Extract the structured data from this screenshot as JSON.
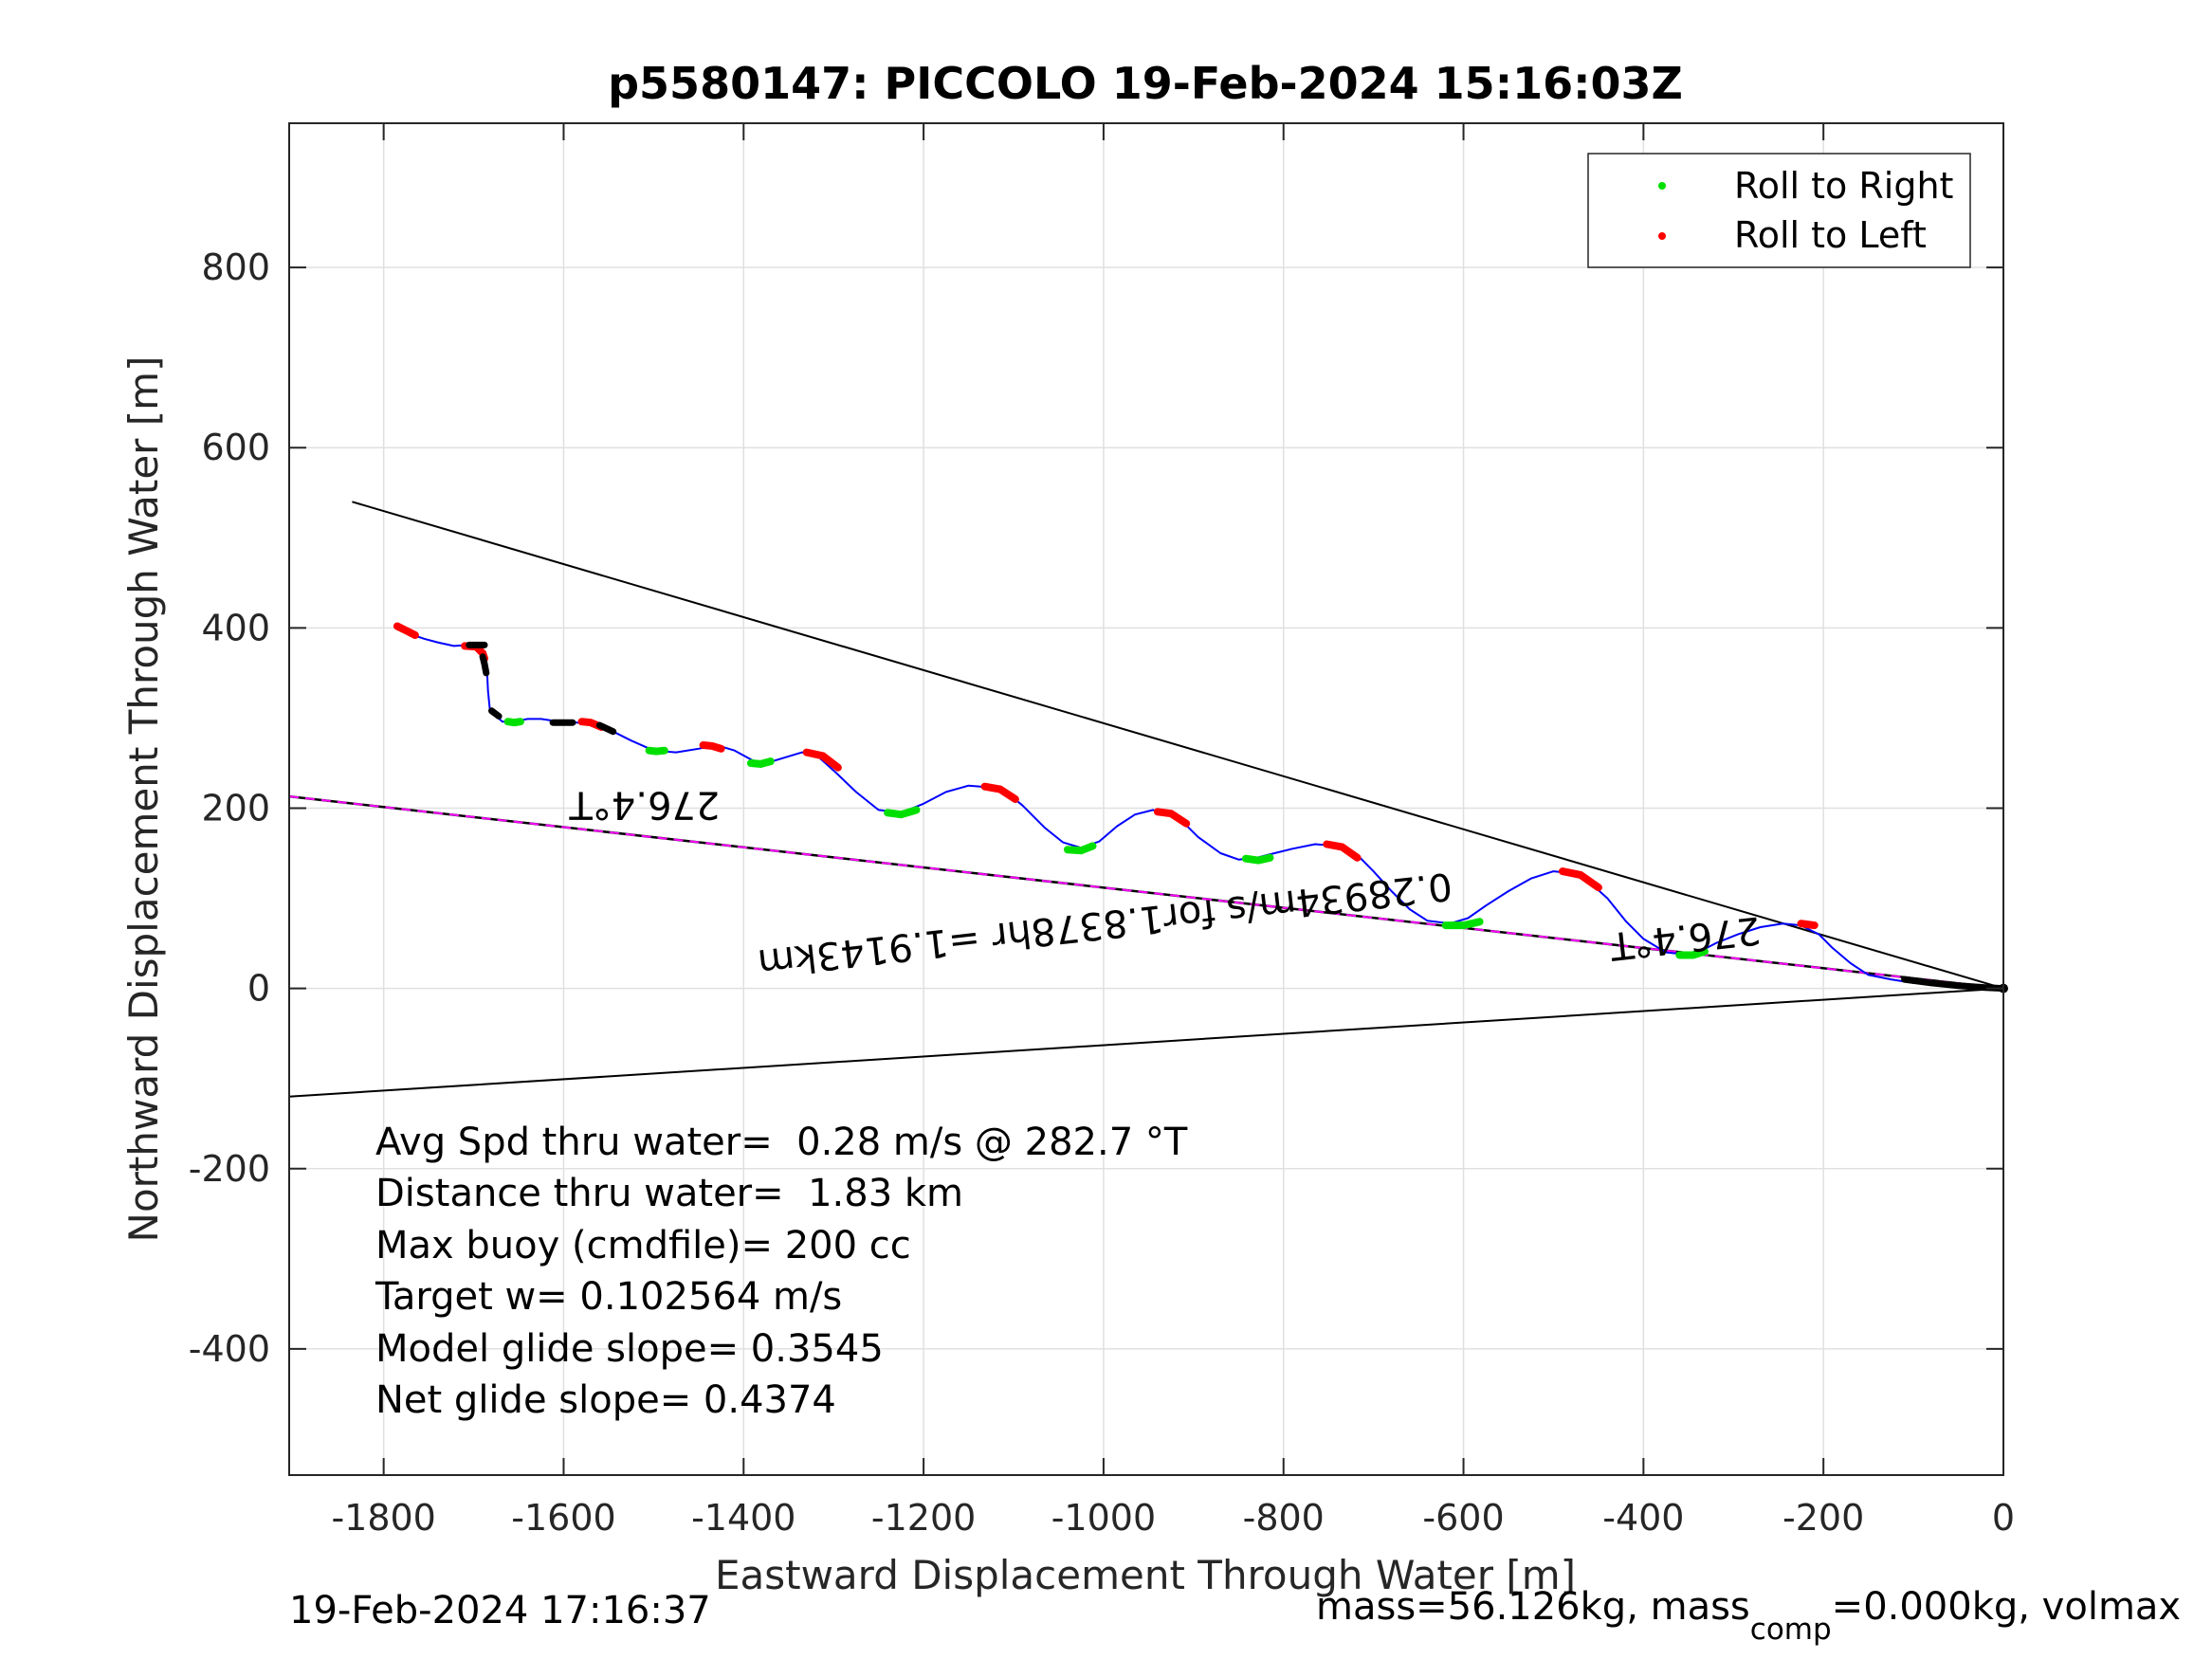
{
  "chart_data": {
    "type": "line",
    "title": "p5580147: PICCOLO 19-Feb-2024 15:16:03Z",
    "xlabel": "Eastward Displacement Through Water [m]",
    "ylabel": "Northward Displacement Through Water [m]",
    "xlim": [
      -1905,
      0
    ],
    "ylim": [
      -540,
      960
    ],
    "xticks": [
      -1800,
      -1600,
      -1400,
      -1200,
      -1000,
      -800,
      -600,
      -400,
      -200,
      0
    ],
    "yticks": [
      -400,
      -200,
      0,
      200,
      400,
      600,
      800
    ],
    "grid": true,
    "legend_position": "top-right",
    "legend": [
      {
        "label": "Roll to Right",
        "color": "#00e000"
      },
      {
        "label": "Roll to Left",
        "color": "#ff0000"
      }
    ],
    "colors": {
      "track": "#0000ff",
      "heading_line": "#ff00ff",
      "cone": "#000000",
      "roll_right": "#00e000",
      "roll_left": "#ff0000",
      "grid": "#e0e0e0"
    },
    "track": {
      "x": [
        -1783,
        -1770,
        -1755,
        -1740,
        -1722,
        -1707,
        -1695,
        -1688,
        -1685,
        -1684,
        -1682,
        -1676,
        -1668,
        -1655,
        -1640,
        -1625,
        -1605,
        -1585,
        -1565,
        -1545,
        -1525,
        -1500,
        -1475,
        -1450,
        -1430,
        -1410,
        -1390,
        -1375,
        -1355,
        -1335,
        -1318,
        -1298,
        -1275,
        -1250,
        -1225,
        -1200,
        -1175,
        -1150,
        -1125,
        -1108,
        -1090,
        -1065,
        -1045,
        -1025,
        -1005,
        -985,
        -965,
        -945,
        -925,
        -910,
        -895,
        -870,
        -850,
        -830,
        -810,
        -790,
        -765,
        -740,
        -720,
        -700,
        -680,
        -660,
        -640,
        -615,
        -595,
        -575,
        -550,
        -525,
        -500,
        -480,
        -460,
        -440,
        -420,
        -400,
        -375,
        -345,
        -320,
        -295,
        -270,
        -245,
        -225,
        -205,
        -190,
        -170,
        -150,
        -125,
        -100,
        -80,
        -60,
        -40,
        -20,
        0
      ],
      "y": [
        402,
        393,
        388,
        384,
        380,
        381,
        376,
        368,
        350,
        330,
        310,
        303,
        296,
        296,
        299,
        299,
        296,
        295,
        292,
        285,
        275,
        264,
        262,
        266,
        270,
        264,
        253,
        250,
        256,
        262,
        258,
        240,
        218,
        198,
        195,
        205,
        218,
        225,
        223,
        218,
        203,
        178,
        162,
        156,
        163,
        180,
        193,
        198,
        192,
        183,
        168,
        150,
        143,
        145,
        150,
        155,
        160,
        158,
        150,
        130,
        108,
        88,
        75,
        72,
        78,
        92,
        108,
        122,
        130,
        128,
        118,
        100,
        75,
        55,
        40,
        37,
        50,
        60,
        68,
        72,
        70,
        60,
        45,
        28,
        15,
        10,
        6,
        5,
        4,
        3,
        2,
        0
      ]
    },
    "roll_right_segments": [
      {
        "x": [
          -1662,
          -1655,
          -1648
        ],
        "y": [
          296,
          295,
          296
        ]
      },
      {
        "x": [
          -1505,
          -1497,
          -1488
        ],
        "y": [
          264,
          263,
          264
        ]
      },
      {
        "x": [
          -1392,
          -1381,
          -1370
        ],
        "y": [
          250,
          249,
          252
        ]
      },
      {
        "x": [
          -1240,
          -1225,
          -1208
        ],
        "y": [
          195,
          193,
          198
        ]
      },
      {
        "x": [
          -1040,
          -1025,
          -1012
        ],
        "y": [
          154,
          153,
          158
        ]
      },
      {
        "x": [
          -842,
          -828,
          -815
        ],
        "y": [
          144,
          142,
          145
        ]
      },
      {
        "x": [
          -620,
          -600,
          -582
        ],
        "y": [
          70,
          70,
          74
        ]
      },
      {
        "x": [
          -360,
          -345,
          -332
        ],
        "y": [
          37,
          37,
          41
        ]
      }
    ],
    "roll_left_segments": [
      {
        "x": [
          -1785,
          -1775,
          -1765
        ],
        "y": [
          402,
          397,
          392
        ]
      },
      {
        "x": [
          -1710,
          -1697,
          -1690,
          -1688
        ],
        "y": [
          380,
          379,
          372,
          366
        ]
      },
      {
        "x": [
          -1580,
          -1570,
          -1558
        ],
        "y": [
          296,
          295,
          290
        ]
      },
      {
        "x": [
          -1445,
          -1435,
          -1425
        ],
        "y": [
          270,
          269,
          266
        ]
      },
      {
        "x": [
          -1330,
          -1312,
          -1295
        ],
        "y": [
          262,
          258,
          245
        ]
      },
      {
        "x": [
          -1132,
          -1115,
          -1098
        ],
        "y": [
          224,
          221,
          210
        ]
      },
      {
        "x": [
          -940,
          -925,
          -908
        ],
        "y": [
          196,
          194,
          183
        ]
      },
      {
        "x": [
          -752,
          -735,
          -718
        ],
        "y": [
          160,
          157,
          145
        ]
      },
      {
        "x": [
          -490,
          -470,
          -450
        ],
        "y": [
          130,
          126,
          112
        ]
      },
      {
        "x": [
          -225,
          -210
        ],
        "y": [
          72,
          70
        ]
      }
    ],
    "surfacing_segments": [
      {
        "x": [
          -1705,
          -1688
        ],
        "y": [
          381,
          381
        ]
      },
      {
        "x": [
          -1690,
          -1688,
          -1686
        ],
        "y": [
          368,
          360,
          350
        ]
      },
      {
        "x": [
          -1680,
          -1672
        ],
        "y": [
          308,
          302
        ]
      },
      {
        "x": [
          -1612,
          -1590
        ],
        "y": [
          295,
          295
        ]
      },
      {
        "x": [
          -1560,
          -1545
        ],
        "y": [
          292,
          285
        ]
      },
      {
        "x": [
          -110,
          -80,
          -50,
          -20,
          0
        ],
        "y": [
          10,
          6,
          3,
          1,
          0
        ]
      }
    ],
    "heading_line": {
      "x": [
        -1905,
        0
      ],
      "y": [
        213,
        0
      ]
    },
    "cone_upper": {
      "x": [
        -1835,
        0
      ],
      "y": [
        540,
        0
      ]
    },
    "cone_lower": {
      "x": [
        -1905,
        0
      ],
      "y": [
        -120,
        0
      ]
    },
    "annotations": [
      {
        "text": "276.4°T",
        "x": -1510,
        "y": 218,
        "rotate": 180
      },
      {
        "text": "276.4°T",
        "x": -355,
        "y": 70,
        "rotate": 173.6
      },
      {
        "text": "0.28934m/s for1.8378hr =1.9143km",
        "x": -1000,
        "y": 85,
        "rotate": 173.6
      }
    ],
    "stats": [
      "Avg Spd thru water=  0.28 m/s @ 282.7 °T",
      "Distance thru water=  1.83 km",
      "Max buoy (cmdfile)= 200 cc",
      "Target w= 0.102564 m/s",
      "Model glide slope= 0.3545",
      "Net glide slope= 0.4374"
    ]
  },
  "footer": {
    "timestamp": "19-Feb-2024 17:16:37",
    "mass_prefix": "mass=56.126kg, mass",
    "mass_subscript": "comp",
    "mass_suffix": "=0.000kg, volmax"
  }
}
